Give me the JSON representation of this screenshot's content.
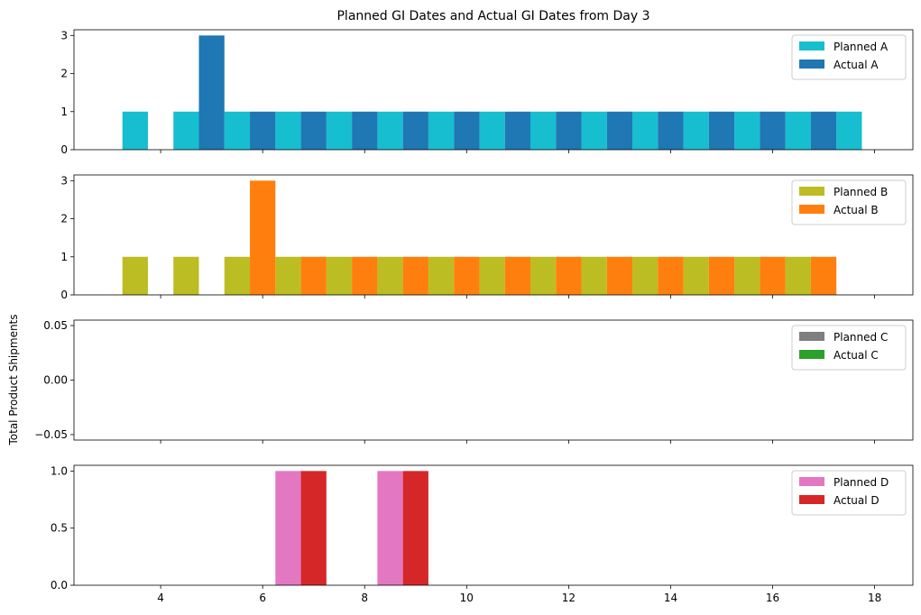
{
  "title": "Planned GI Dates and Actual GI Dates from Day 3",
  "ylabel": "Total Product Shipments",
  "chart_data": [
    {
      "type": "bar",
      "title": "Planned GI Dates and Actual GI Dates from Day 3",
      "xlim": [
        2.3,
        18.75
      ],
      "ylim": [
        0,
        3.15
      ],
      "yticks": [
        0,
        1,
        2,
        3
      ],
      "ytick_labels": [
        "0",
        "1",
        "2",
        "3"
      ],
      "xticks": [
        4,
        6,
        8,
        10,
        12,
        14,
        16,
        18
      ],
      "legend_position": "top-right",
      "series": [
        {
          "name": "Planned A",
          "color": "#17becf",
          "x": [
            3.5,
            4.5,
            5.5,
            6.5,
            7.5,
            8.5,
            9.5,
            10.5,
            11.5,
            12.5,
            13.5,
            14.5,
            15.5,
            16.5,
            17.5
          ],
          "values": [
            1,
            1,
            1,
            1,
            1,
            1,
            1,
            1,
            1,
            1,
            1,
            1,
            1,
            1,
            1
          ]
        },
        {
          "name": "Actual A",
          "color": "#1f77b4",
          "x": [
            5,
            6,
            7,
            8,
            9,
            10,
            11,
            12,
            13,
            14,
            15,
            16,
            17
          ],
          "values": [
            3,
            1,
            1,
            1,
            1,
            1,
            1,
            1,
            1,
            1,
            1,
            1,
            1
          ]
        }
      ]
    },
    {
      "type": "bar",
      "xlim": [
        2.3,
        18.75
      ],
      "ylim": [
        0,
        3.15
      ],
      "yticks": [
        0,
        1,
        2,
        3
      ],
      "ytick_labels": [
        "0",
        "1",
        "2",
        "3"
      ],
      "xticks": [
        4,
        6,
        8,
        10,
        12,
        14,
        16,
        18
      ],
      "legend_position": "top-right",
      "series": [
        {
          "name": "Planned B",
          "color": "#bcbd22",
          "x": [
            3.5,
            4.5,
            5.5,
            6.5,
            7.5,
            8.5,
            9.5,
            10.5,
            11.5,
            12.5,
            13.5,
            14.5,
            15.5,
            16.5
          ],
          "values": [
            1,
            1,
            1,
            1,
            1,
            1,
            1,
            1,
            1,
            1,
            1,
            1,
            1,
            1
          ]
        },
        {
          "name": "Actual B",
          "color": "#ff7f0e",
          "x": [
            6,
            7,
            8,
            9,
            10,
            11,
            12,
            13,
            14,
            15,
            16,
            17
          ],
          "values": [
            3,
            1,
            1,
            1,
            1,
            1,
            1,
            1,
            1,
            1,
            1,
            1
          ]
        }
      ]
    },
    {
      "type": "bar",
      "xlim": [
        2.3,
        18.75
      ],
      "ylim": [
        -0.055,
        0.055
      ],
      "yticks": [
        -0.05,
        0,
        0.05
      ],
      "ytick_labels": [
        "−0.05",
        "0.00",
        "0.05"
      ],
      "xticks": [
        4,
        6,
        8,
        10,
        12,
        14,
        16,
        18
      ],
      "legend_position": "top-right",
      "series": [
        {
          "name": "Planned C",
          "color": "#7f7f7f",
          "x": [],
          "values": []
        },
        {
          "name": "Actual C",
          "color": "#2ca02c",
          "x": [],
          "values": []
        }
      ]
    },
    {
      "type": "bar",
      "xlim": [
        2.3,
        18.75
      ],
      "ylim": [
        0,
        1.05
      ],
      "yticks": [
        0,
        0.5,
        1
      ],
      "ytick_labels": [
        "0.0",
        "0.5",
        "1.0"
      ],
      "xticks": [
        4,
        6,
        8,
        10,
        12,
        14,
        16,
        18
      ],
      "xtick_labels": [
        "4",
        "6",
        "8",
        "10",
        "12",
        "14",
        "16",
        "18"
      ],
      "legend_position": "top-right",
      "series": [
        {
          "name": "Planned D",
          "color": "#e377c2",
          "x": [
            6.5,
            8.5
          ],
          "values": [
            1,
            1
          ]
        },
        {
          "name": "Actual D",
          "color": "#d62728",
          "x": [
            7,
            9
          ],
          "values": [
            1,
            1
          ]
        }
      ]
    }
  ]
}
